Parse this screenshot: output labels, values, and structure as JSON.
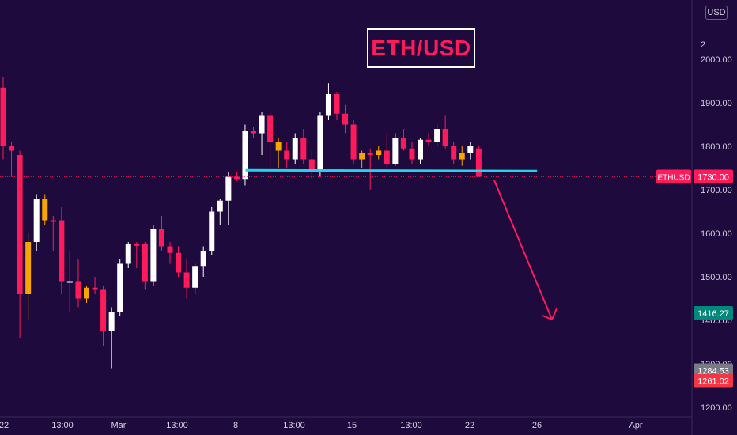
{
  "chart_data": {
    "type": "candlestick",
    "title": "ETH/USD",
    "symbol": "ETHUSD",
    "currency": "USD",
    "ylim": [
      1200,
      2000
    ],
    "y_ticks": [
      "2",
      "2000.00",
      "1900.00",
      "1800.00",
      "1700.00",
      "1600.00",
      "1500.00",
      "1400.00",
      "1300.00",
      "1200.00"
    ],
    "x_ticks": [
      "22",
      "13:00",
      "Mar",
      "13:00",
      "8",
      "13:00",
      "15",
      "13:00",
      "22",
      "26",
      "Apr"
    ],
    "price_labels": {
      "last": {
        "text": "1730.00",
        "value": 1730,
        "color": "#ff1a5c"
      },
      "level_a": {
        "text": "1416.27",
        "value": 1416.27,
        "color": "#00897b"
      },
      "level_b": {
        "text": "1284.53",
        "value": 1284.53,
        "color": "#787b86"
      },
      "level_c": {
        "text": "1261.02",
        "value": 1261.02,
        "color": "#f23645"
      }
    },
    "symbol_tag": "ETHUSD",
    "support_level": 1745,
    "projection": {
      "from_x": 26.1,
      "from_y": 1730,
      "to_x": 29.6,
      "to_y": 1400
    },
    "colors": {
      "up": "#ffffff",
      "down": "#ff1a5c",
      "doji": "#f7a600",
      "support": "#22d3ee",
      "arrow": "#ff1a5c",
      "background": "#1e0a3c"
    },
    "candles": [
      {
        "x": 0,
        "open": 1935,
        "high": 1960,
        "low": 1770,
        "close": 1800,
        "dir": "down"
      },
      {
        "x": 1,
        "open": 1800,
        "high": 1810,
        "low": 1730,
        "close": 1790,
        "dir": "down"
      },
      {
        "x": 2,
        "open": 1780,
        "high": 1790,
        "low": 1360,
        "close": 1460,
        "dir": "down"
      },
      {
        "x": 3,
        "open": 1460,
        "high": 1600,
        "low": 1400,
        "close": 1580,
        "dir": "doji"
      },
      {
        "x": 4,
        "open": 1580,
        "high": 1690,
        "low": 1560,
        "close": 1680,
        "dir": "up"
      },
      {
        "x": 5,
        "open": 1680,
        "high": 1690,
        "low": 1620,
        "close": 1630,
        "dir": "doji"
      },
      {
        "x": 6,
        "open": 1630,
        "high": 1640,
        "low": 1560,
        "close": 1630,
        "dir": "down"
      },
      {
        "x": 7,
        "open": 1630,
        "high": 1660,
        "low": 1460,
        "close": 1490,
        "dir": "down"
      },
      {
        "x": 8,
        "open": 1490,
        "high": 1560,
        "low": 1420,
        "close": 1490,
        "dir": "up"
      },
      {
        "x": 9,
        "open": 1490,
        "high": 1540,
        "low": 1430,
        "close": 1450,
        "dir": "down"
      },
      {
        "x": 10,
        "open": 1450,
        "high": 1480,
        "low": 1440,
        "close": 1475,
        "dir": "doji"
      },
      {
        "x": 11,
        "open": 1475,
        "high": 1500,
        "low": 1460,
        "close": 1470,
        "dir": "down"
      },
      {
        "x": 12,
        "open": 1470,
        "high": 1480,
        "low": 1340,
        "close": 1375,
        "dir": "down"
      },
      {
        "x": 13,
        "open": 1375,
        "high": 1430,
        "low": 1290,
        "close": 1420,
        "dir": "up"
      },
      {
        "x": 14,
        "open": 1420,
        "high": 1540,
        "low": 1410,
        "close": 1530,
        "dir": "up"
      },
      {
        "x": 15,
        "open": 1530,
        "high": 1580,
        "low": 1520,
        "close": 1575,
        "dir": "up"
      },
      {
        "x": 16,
        "open": 1575,
        "high": 1580,
        "low": 1520,
        "close": 1575,
        "dir": "down"
      },
      {
        "x": 17,
        "open": 1575,
        "high": 1580,
        "low": 1470,
        "close": 1490,
        "dir": "down"
      },
      {
        "x": 18,
        "open": 1490,
        "high": 1620,
        "low": 1480,
        "close": 1610,
        "dir": "up"
      },
      {
        "x": 19,
        "open": 1610,
        "high": 1640,
        "low": 1560,
        "close": 1570,
        "dir": "down"
      },
      {
        "x": 20,
        "open": 1570,
        "high": 1580,
        "low": 1530,
        "close": 1555,
        "dir": "down"
      },
      {
        "x": 21,
        "open": 1555,
        "high": 1570,
        "low": 1500,
        "close": 1510,
        "dir": "down"
      },
      {
        "x": 22,
        "open": 1510,
        "high": 1540,
        "low": 1450,
        "close": 1475,
        "dir": "down"
      },
      {
        "x": 23,
        "open": 1475,
        "high": 1530,
        "low": 1460,
        "close": 1525,
        "dir": "up"
      },
      {
        "x": 24,
        "open": 1525,
        "high": 1570,
        "low": 1500,
        "close": 1560,
        "dir": "up"
      },
      {
        "x": 25,
        "open": 1560,
        "high": 1660,
        "low": 1550,
        "close": 1650,
        "dir": "up"
      },
      {
        "x": 26,
        "open": 1650,
        "high": 1680,
        "low": 1620,
        "close": 1675,
        "dir": "up"
      },
      {
        "x": 27,
        "open": 1675,
        "high": 1740,
        "low": 1620,
        "close": 1730,
        "dir": "up"
      },
      {
        "x": 28,
        "open": 1730,
        "high": 1740,
        "low": 1720,
        "close": 1725,
        "dir": "down"
      },
      {
        "x": 29,
        "open": 1725,
        "high": 1850,
        "low": 1710,
        "close": 1835,
        "dir": "up"
      },
      {
        "x": 30,
        "open": 1835,
        "high": 1845,
        "low": 1820,
        "close": 1830,
        "dir": "down"
      },
      {
        "x": 31,
        "open": 1830,
        "high": 1880,
        "low": 1780,
        "close": 1870,
        "dir": "up"
      },
      {
        "x": 32,
        "open": 1870,
        "high": 1880,
        "low": 1750,
        "close": 1810,
        "dir": "down"
      },
      {
        "x": 33,
        "open": 1810,
        "high": 1820,
        "low": 1750,
        "close": 1790,
        "dir": "doji"
      },
      {
        "x": 34,
        "open": 1790,
        "high": 1810,
        "low": 1750,
        "close": 1770,
        "dir": "down"
      },
      {
        "x": 35,
        "open": 1770,
        "high": 1830,
        "low": 1760,
        "close": 1820,
        "dir": "up"
      },
      {
        "x": 36,
        "open": 1820,
        "high": 1840,
        "low": 1760,
        "close": 1770,
        "dir": "down"
      },
      {
        "x": 37,
        "open": 1770,
        "high": 1790,
        "low": 1725,
        "close": 1745,
        "dir": "down"
      },
      {
        "x": 38,
        "open": 1745,
        "high": 1880,
        "low": 1730,
        "close": 1870,
        "dir": "up"
      },
      {
        "x": 39,
        "open": 1870,
        "high": 1945,
        "low": 1860,
        "close": 1920,
        "dir": "up"
      },
      {
        "x": 40,
        "open": 1920,
        "high": 1925,
        "low": 1860,
        "close": 1875,
        "dir": "down"
      },
      {
        "x": 41,
        "open": 1875,
        "high": 1895,
        "low": 1830,
        "close": 1850,
        "dir": "down"
      },
      {
        "x": 42,
        "open": 1850,
        "high": 1860,
        "low": 1760,
        "close": 1770,
        "dir": "down"
      },
      {
        "x": 43,
        "open": 1770,
        "high": 1790,
        "low": 1750,
        "close": 1785,
        "dir": "doji"
      },
      {
        "x": 44,
        "open": 1785,
        "high": 1795,
        "low": 1700,
        "close": 1780,
        "dir": "down"
      },
      {
        "x": 45,
        "open": 1780,
        "high": 1800,
        "low": 1770,
        "close": 1790,
        "dir": "doji"
      },
      {
        "x": 46,
        "open": 1790,
        "high": 1830,
        "low": 1750,
        "close": 1760,
        "dir": "down"
      },
      {
        "x": 47,
        "open": 1760,
        "high": 1830,
        "low": 1755,
        "close": 1820,
        "dir": "up"
      },
      {
        "x": 48,
        "open": 1820,
        "high": 1840,
        "low": 1790,
        "close": 1795,
        "dir": "down"
      },
      {
        "x": 49,
        "open": 1795,
        "high": 1810,
        "low": 1760,
        "close": 1770,
        "dir": "down"
      },
      {
        "x": 50,
        "open": 1770,
        "high": 1820,
        "low": 1760,
        "close": 1815,
        "dir": "up"
      },
      {
        "x": 51,
        "open": 1815,
        "high": 1830,
        "low": 1800,
        "close": 1810,
        "dir": "down"
      },
      {
        "x": 52,
        "open": 1810,
        "high": 1850,
        "low": 1800,
        "close": 1840,
        "dir": "up"
      },
      {
        "x": 53,
        "open": 1840,
        "high": 1870,
        "low": 1795,
        "close": 1800,
        "dir": "down"
      },
      {
        "x": 54,
        "open": 1800,
        "high": 1810,
        "low": 1760,
        "close": 1770,
        "dir": "down"
      },
      {
        "x": 55,
        "open": 1770,
        "high": 1800,
        "low": 1755,
        "close": 1785,
        "dir": "doji"
      },
      {
        "x": 56,
        "open": 1785,
        "high": 1810,
        "low": 1770,
        "close": 1800,
        "dir": "up"
      },
      {
        "x": 57,
        "open": 1795,
        "high": 1800,
        "low": 1730,
        "close": 1730,
        "dir": "down"
      }
    ]
  }
}
